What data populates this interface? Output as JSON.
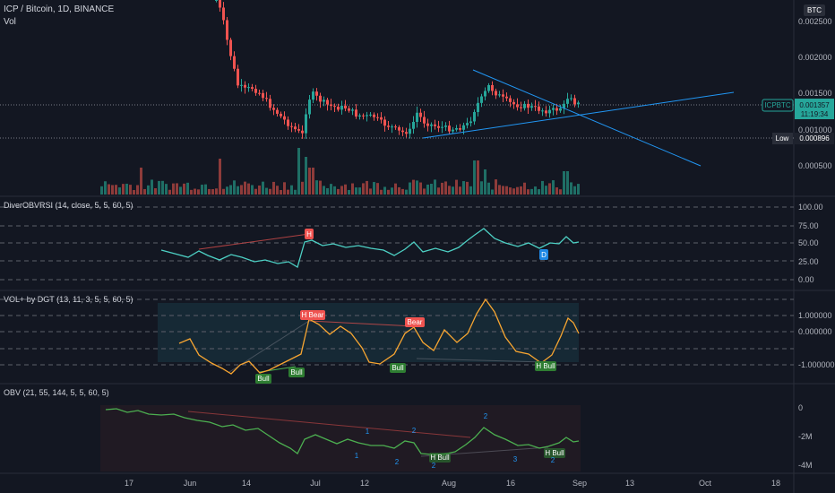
{
  "header": {
    "symbol_line": "ICP / Bitcoin, 1D, BINANCE",
    "vol_label": "Vol"
  },
  "price_axis": {
    "currency": "BTC",
    "ticks": [
      "0.002500",
      "0.002000",
      "0.001500",
      "0.001000",
      "0.000500"
    ],
    "last_symbol": "ICPBTC",
    "last_price": "0.001357",
    "countdown": "11:19:34",
    "low_label": "Low",
    "low_value": "0.000896"
  },
  "x_axis": {
    "labels": [
      "17",
      "Jun",
      "14",
      "Jul",
      "12",
      "Aug",
      "16",
      "Sep",
      "13",
      "Oct",
      "18"
    ]
  },
  "panes": {
    "obvrsi": {
      "title": "DiverOBVRSI (14, close, 5, 5, 60, 5)",
      "ticks": [
        "100.00",
        "75.00",
        "50.00",
        "25.00",
        "0.00"
      ],
      "badges": [
        "H",
        "D"
      ]
    },
    "volplus": {
      "title": "VOL+ by DGT (13, 11, 3, 5, 5, 60, 5)",
      "ticks": [
        "1.000000",
        "0.000000",
        "-1.000000"
      ],
      "badges": [
        "H Bear",
        "Bear",
        "Bull",
        "Bull",
        "Bull",
        "H Bull"
      ]
    },
    "obv": {
      "title": "OBV (21, 55, 144, 5, 5, 60, 5)",
      "ticks": [
        "0",
        "-2M",
        "-4M"
      ],
      "markers": [
        "1",
        "2",
        "2",
        "1",
        "2",
        "H Bull",
        "3",
        "2",
        "H Bull",
        "2"
      ]
    }
  },
  "colors": {
    "background": "#131722",
    "up": "#26a69a",
    "down": "#ef5350",
    "rsi_line": "#4dd0c4",
    "vol_line": "#f7a531",
    "obv_line": "#4caf50",
    "trendline": "#2196f3"
  }
}
